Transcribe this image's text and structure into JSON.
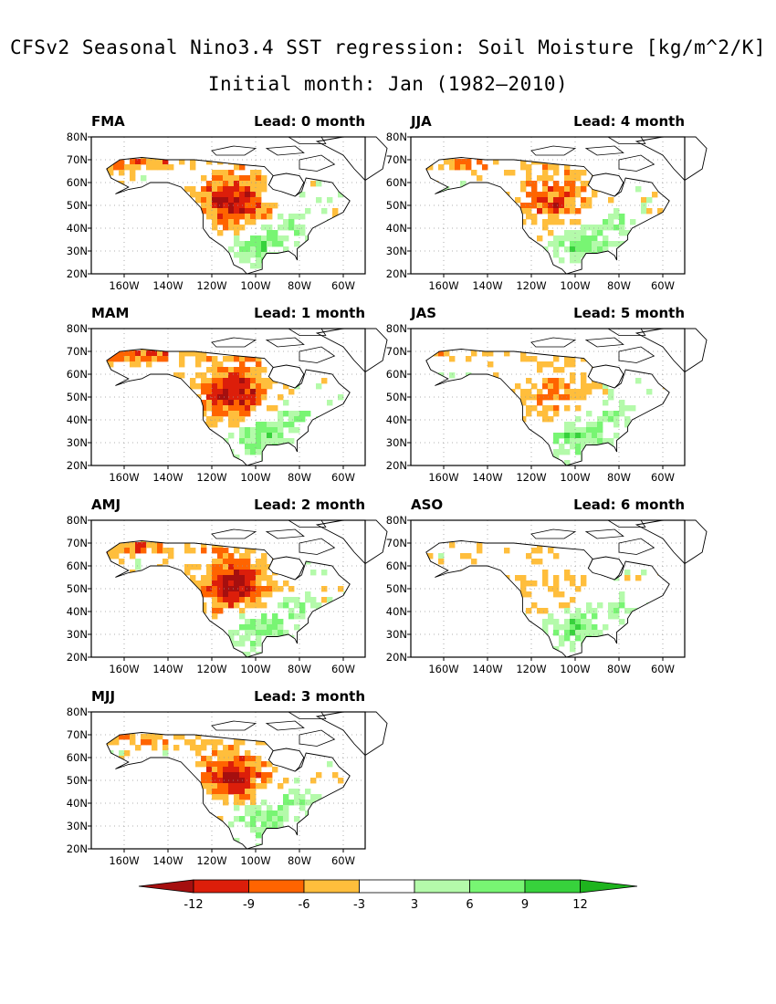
{
  "title_line1": "CFSv2 Seasonal Nino3.4 SST regression: Soil Moisture [kg/m^2/K]",
  "title_line2": "Initial month: Jan (1982–2010)",
  "lat_labels": [
    "80N",
    "70N",
    "60N",
    "50N",
    "40N",
    "30N",
    "20N"
  ],
  "lon_labels": [
    "160W",
    "140W",
    "120W",
    "100W",
    "80W",
    "60W"
  ],
  "panels": [
    {
      "season": "FMA",
      "lead": "Lead: 0 month",
      "dry": 0.95,
      "wet": 0.7
    },
    {
      "season": "MAM",
      "lead": "Lead: 1 month",
      "dry": 1.0,
      "wet": 0.75
    },
    {
      "season": "AMJ",
      "lead": "Lead: 2 month",
      "dry": 1.0,
      "wet": 0.75
    },
    {
      "season": "MJJ",
      "lead": "Lead: 3 month",
      "dry": 0.85,
      "wet": 0.65
    },
    {
      "season": "JJA",
      "lead": "Lead: 4 month",
      "dry": 0.7,
      "wet": 0.7
    },
    {
      "season": "JAS",
      "lead": "Lead: 5 month",
      "dry": 0.4,
      "wet": 0.75
    },
    {
      "season": "ASO",
      "lead": "Lead: 6 month",
      "dry": 0.25,
      "wet": 0.7
    }
  ],
  "colorbar": {
    "labels": [
      "-12",
      "-9",
      "-6",
      "-3",
      "3",
      "6",
      "9",
      "12"
    ],
    "colors": [
      "#a50f0f",
      "#dc1e0a",
      "#ff6400",
      "#ffbe3c",
      "#ffffff",
      "#b4faaa",
      "#78f573",
      "#37d23c",
      "#1eb41e"
    ]
  }
}
